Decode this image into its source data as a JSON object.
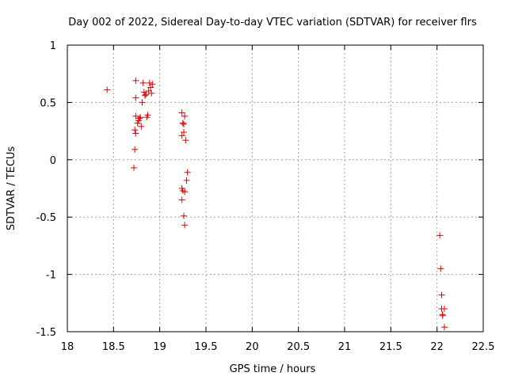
{
  "chart_data": {
    "type": "scatter",
    "title": "Day 002 of 2022, Sidereal Day-to-day VTEC variation (SDTVAR) for receiver flrs",
    "xlabel": "GPS time / hours",
    "ylabel": "SDTVAR / TECUs",
    "xlim": [
      18,
      22.5
    ],
    "ylim": [
      -1.5,
      1
    ],
    "x_ticks": [
      18,
      18.5,
      19,
      19.5,
      20,
      20.5,
      21,
      21.5,
      22,
      22.5
    ],
    "y_ticks": [
      -1.5,
      -1,
      -0.5,
      0,
      0.5,
      1
    ],
    "x_tick_labels": [
      "18",
      "18.5",
      "19",
      "19.5",
      "20",
      "20.5",
      "21",
      "21.5",
      "22",
      "22.5"
    ],
    "y_tick_labels": [
      "-1.5",
      "-1",
      "-0.5",
      "0",
      "0.5",
      "1"
    ],
    "grid": true,
    "marker": "+",
    "marker_color": "#dd0000",
    "series": [
      {
        "name": "flrs",
        "points": [
          {
            "x": 18.43,
            "y": 0.61
          },
          {
            "x": 18.74,
            "y": 0.69
          },
          {
            "x": 18.74,
            "y": 0.54
          },
          {
            "x": 18.74,
            "y": 0.38
          },
          {
            "x": 18.73,
            "y": 0.26
          },
          {
            "x": 18.74,
            "y": 0.23
          },
          {
            "x": 18.73,
            "y": 0.09
          },
          {
            "x": 18.72,
            "y": -0.07
          },
          {
            "x": 18.76,
            "y": 0.32
          },
          {
            "x": 18.77,
            "y": 0.34
          },
          {
            "x": 18.78,
            "y": 0.36
          },
          {
            "x": 18.79,
            "y": 0.37
          },
          {
            "x": 18.8,
            "y": 0.29
          },
          {
            "x": 18.81,
            "y": 0.5
          },
          {
            "x": 18.82,
            "y": 0.67
          },
          {
            "x": 18.83,
            "y": 0.59
          },
          {
            "x": 18.84,
            "y": 0.56
          },
          {
            "x": 18.85,
            "y": 0.57
          },
          {
            "x": 18.86,
            "y": 0.37
          },
          {
            "x": 18.87,
            "y": 0.39
          },
          {
            "x": 18.88,
            "y": 0.6
          },
          {
            "x": 18.89,
            "y": 0.67
          },
          {
            "x": 18.9,
            "y": 0.63
          },
          {
            "x": 18.91,
            "y": 0.58
          },
          {
            "x": 18.92,
            "y": 0.66
          },
          {
            "x": 19.24,
            "y": 0.41
          },
          {
            "x": 19.25,
            "y": 0.32
          },
          {
            "x": 19.26,
            "y": 0.31
          },
          {
            "x": 19.27,
            "y": 0.38
          },
          {
            "x": 19.24,
            "y": 0.21
          },
          {
            "x": 19.26,
            "y": 0.24
          },
          {
            "x": 19.28,
            "y": 0.17
          },
          {
            "x": 19.3,
            "y": -0.11
          },
          {
            "x": 19.29,
            "y": -0.18
          },
          {
            "x": 19.24,
            "y": -0.25
          },
          {
            "x": 19.25,
            "y": -0.27
          },
          {
            "x": 19.27,
            "y": -0.28
          },
          {
            "x": 19.24,
            "y": -0.35
          },
          {
            "x": 19.26,
            "y": -0.49
          },
          {
            "x": 19.27,
            "y": -0.57
          },
          {
            "x": 22.03,
            "y": -0.66
          },
          {
            "x": 22.04,
            "y": -0.95
          },
          {
            "x": 22.05,
            "y": -1.18
          },
          {
            "x": 22.05,
            "y": -1.3
          },
          {
            "x": 22.06,
            "y": -1.36
          },
          {
            "x": 22.06,
            "y": -1.35
          },
          {
            "x": 22.08,
            "y": -1.3
          },
          {
            "x": 22.08,
            "y": -1.46
          }
        ]
      }
    ]
  }
}
